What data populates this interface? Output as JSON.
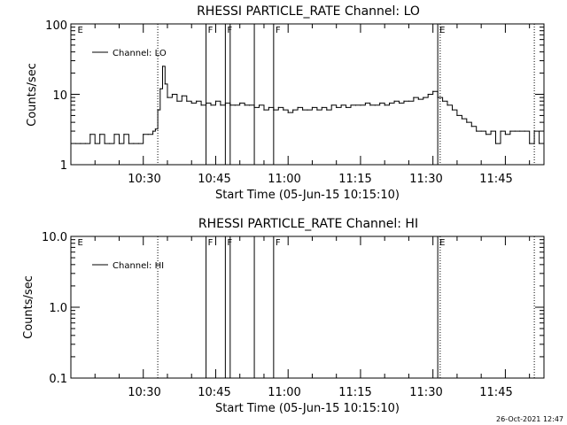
{
  "panels": [
    {
      "title": "RHESSI PARTICLE_RATE Channel: LO",
      "ylabel": "Counts/sec",
      "xlabel": "Start Time (05-Jun-15 10:15:10)",
      "ytick_labels": [
        "1",
        "10",
        "100"
      ],
      "xtick_labels": [
        "10:30",
        "10:45",
        "11:00",
        "11:15",
        "11:30",
        "11:45"
      ],
      "legend": "Channel: LO",
      "markers": [
        "E",
        "F",
        "F",
        "F",
        "E"
      ]
    },
    {
      "title": "RHESSI PARTICLE_RATE Channel: HI",
      "ylabel": "Counts/sec",
      "xlabel": "Start Time (05-Jun-15 10:15:10)",
      "ytick_labels": [
        "0.1",
        "1.0",
        "10.0"
      ],
      "xtick_labels": [
        "10:30",
        "10:45",
        "11:00",
        "11:15",
        "11:30",
        "11:45"
      ],
      "legend": "Channel: HI",
      "markers": [
        "E",
        "F",
        "F",
        "F",
        "E"
      ]
    }
  ],
  "footer": {
    "timestamp": "26-Oct-2021 12:47"
  },
  "colors": {
    "background": "#ffffff",
    "foreground": "#000000"
  },
  "chart_data": [
    {
      "type": "line",
      "title": "RHESSI PARTICLE_RATE Channel: LO",
      "xlabel": "Start Time (05-Jun-15 10:15:10)",
      "ylabel": "Counts/sec",
      "x_unit": "time of day (HH:MM) on 05-Jun-15",
      "xlim": [
        "10:15",
        "11:53"
      ],
      "ylim": [
        1,
        100
      ],
      "yscale": "log",
      "xticks": [
        "10:30",
        "10:45",
        "11:00",
        "11:15",
        "11:30",
        "11:45"
      ],
      "yticks": [
        1,
        10,
        100
      ],
      "legend_position": "top-left",
      "series": [
        {
          "name": "Channel: LO",
          "x": [
            "10:16",
            "10:17",
            "10:18",
            "10:19",
            "10:20",
            "10:21",
            "10:22",
            "10:23",
            "10:24",
            "10:25",
            "10:26",
            "10:27",
            "10:28",
            "10:29",
            "10:30",
            "10:31",
            "10:32",
            "10:32:30",
            "10:33",
            "10:33:30",
            "10:34",
            "10:34:30",
            "10:35",
            "10:36",
            "10:37",
            "10:38",
            "10:39",
            "10:40",
            "10:41",
            "10:42",
            "10:43",
            "10:44",
            "10:45",
            "10:46",
            "10:47",
            "10:48",
            "10:49",
            "10:50",
            "10:51",
            "10:52",
            "10:53",
            "10:54",
            "10:55",
            "10:56",
            "10:57",
            "10:58",
            "10:59",
            "11:00",
            "11:01",
            "11:02",
            "11:03",
            "11:04",
            "11:05",
            "11:06",
            "11:07",
            "11:08",
            "11:09",
            "11:10",
            "11:11",
            "11:12",
            "11:13",
            "11:14",
            "11:15",
            "11:16",
            "11:17",
            "11:18",
            "11:19",
            "11:20",
            "11:21",
            "11:22",
            "11:23",
            "11:24",
            "11:25",
            "11:26",
            "11:27",
            "11:28",
            "11:29",
            "11:30",
            "11:31",
            "11:32",
            "11:33",
            "11:34",
            "11:35",
            "11:36",
            "11:37",
            "11:38",
            "11:39",
            "11:40",
            "11:41",
            "11:42",
            "11:43",
            "11:44",
            "11:45",
            "11:46",
            "11:47",
            "11:48",
            "11:49",
            "11:50",
            "11:51",
            "11:52"
          ],
          "y": [
            2,
            2,
            2,
            2.7,
            2,
            2.7,
            2,
            2,
            2.7,
            2,
            2.7,
            2,
            2,
            2,
            2.7,
            2.7,
            3,
            3.2,
            6,
            12,
            25,
            14,
            9,
            10,
            8,
            9.5,
            8,
            7.5,
            8,
            7,
            7.5,
            7,
            8,
            7,
            7.5,
            7,
            7,
            7.5,
            7,
            7,
            6.5,
            7,
            6,
            6.5,
            6,
            6.5,
            6,
            5.5,
            6,
            6.5,
            6,
            6,
            6.5,
            6,
            6.5,
            6,
            7,
            6.5,
            7,
            6.5,
            7,
            7,
            7,
            7.5,
            7,
            7,
            7.5,
            7,
            7.5,
            8,
            7.5,
            8,
            8,
            9,
            8.5,
            9,
            10,
            11,
            9,
            8,
            7,
            6,
            5,
            4.5,
            4,
            3.5,
            3,
            3,
            2.7,
            3,
            2,
            3,
            2.7,
            3,
            3,
            3,
            3,
            2,
            3,
            2
          ]
        }
      ],
      "annotations": [
        {
          "label": "E",
          "x": "10:16",
          "style": "none"
        },
        {
          "label": "F",
          "x": "10:43",
          "style": "solid"
        },
        {
          "label": "F",
          "x": "10:47",
          "style": "solid"
        },
        {
          "label": "F",
          "x": "10:57",
          "style": "solid"
        },
        {
          "label": "E",
          "x": "11:31",
          "style": "solid"
        }
      ],
      "extra_vertical_lines": [
        {
          "x": "10:33",
          "style": "dotted"
        },
        {
          "x": "10:48",
          "style": "solid"
        },
        {
          "x": "10:53",
          "style": "solid"
        },
        {
          "x": "11:31:30",
          "style": "dotted"
        },
        {
          "x": "11:51",
          "style": "dotted"
        }
      ]
    },
    {
      "type": "line",
      "title": "RHESSI PARTICLE_RATE Channel: HI",
      "xlabel": "Start Time (05-Jun-15 10:15:10)",
      "ylabel": "Counts/sec",
      "x_unit": "time of day (HH:MM) on 05-Jun-15",
      "xlim": [
        "10:15",
        "11:53"
      ],
      "ylim": [
        0.1,
        10
      ],
      "yscale": "log",
      "xticks": [
        "10:30",
        "10:45",
        "11:00",
        "11:15",
        "11:30",
        "11:45"
      ],
      "yticks": [
        0.1,
        1.0,
        10.0
      ],
      "legend_position": "top-left",
      "series": [
        {
          "name": "Channel: HI",
          "x": [],
          "y": []
        }
      ],
      "annotations": [
        {
          "label": "E",
          "x": "10:16",
          "style": "none"
        },
        {
          "label": "F",
          "x": "10:43",
          "style": "solid"
        },
        {
          "label": "F",
          "x": "10:47",
          "style": "solid"
        },
        {
          "label": "F",
          "x": "10:57",
          "style": "solid"
        },
        {
          "label": "E",
          "x": "11:31",
          "style": "solid"
        }
      ],
      "extra_vertical_lines": [
        {
          "x": "10:33",
          "style": "dotted"
        },
        {
          "x": "10:48",
          "style": "solid"
        },
        {
          "x": "10:53",
          "style": "solid"
        },
        {
          "x": "11:31:30",
          "style": "dotted"
        },
        {
          "x": "11:51",
          "style": "dotted"
        }
      ]
    }
  ]
}
